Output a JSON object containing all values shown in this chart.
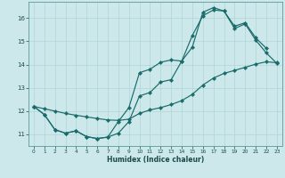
{
  "xlabel": "Humidex (Indice chaleur)",
  "bg_color": "#cce8ea",
  "grid_color": "#b0d4d6",
  "line_color": "#1a6b6b",
  "xlim": [
    -0.5,
    23.5
  ],
  "ylim": [
    10.5,
    16.7
  ],
  "xticks": [
    0,
    1,
    2,
    3,
    4,
    5,
    6,
    7,
    8,
    9,
    10,
    11,
    12,
    13,
    14,
    15,
    16,
    17,
    18,
    19,
    20,
    21,
    22,
    23
  ],
  "yticks": [
    11,
    12,
    13,
    14,
    15,
    16
  ],
  "line1_x": [
    0,
    1,
    2,
    3,
    4,
    5,
    6,
    7,
    8,
    9,
    10,
    11,
    12,
    13,
    14,
    15,
    16,
    17,
    18,
    19,
    20,
    21,
    22
  ],
  "line1_y": [
    12.2,
    11.85,
    11.2,
    11.05,
    11.15,
    10.9,
    10.82,
    10.88,
    11.05,
    11.55,
    12.65,
    12.8,
    13.25,
    13.35,
    14.15,
    14.75,
    16.25,
    16.45,
    16.3,
    15.65,
    15.8,
    15.15,
    14.7
  ],
  "line2_x": [
    0,
    1,
    2,
    3,
    4,
    5,
    6,
    7,
    8,
    9,
    10,
    11,
    12,
    13,
    14,
    15,
    16,
    17,
    18,
    19,
    20,
    21,
    22,
    23
  ],
  "line2_y": [
    12.2,
    11.85,
    11.2,
    11.05,
    11.15,
    10.9,
    10.82,
    10.88,
    11.55,
    12.15,
    13.65,
    13.8,
    14.1,
    14.2,
    14.15,
    15.25,
    16.1,
    16.35,
    16.3,
    15.55,
    15.75,
    15.05,
    14.5,
    14.05
  ],
  "line3_x": [
    0,
    1,
    2,
    3,
    4,
    5,
    6,
    7,
    8,
    9,
    10,
    11,
    12,
    13,
    14,
    15,
    16,
    17,
    18,
    19,
    20,
    21,
    22,
    23
  ],
  "line3_y": [
    12.2,
    12.1,
    12.0,
    11.9,
    11.82,
    11.75,
    11.68,
    11.62,
    11.6,
    11.65,
    11.9,
    12.05,
    12.15,
    12.28,
    12.45,
    12.72,
    13.12,
    13.42,
    13.62,
    13.75,
    13.88,
    14.02,
    14.12,
    14.08
  ]
}
